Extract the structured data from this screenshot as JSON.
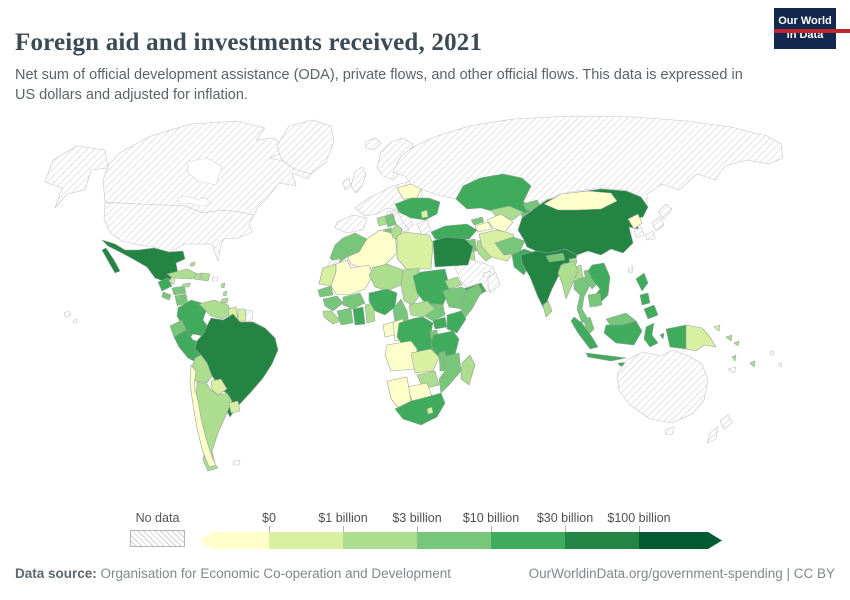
{
  "header": {
    "title": "Foreign aid and investments received, 2021",
    "subtitle": "Net sum of official development assistance (ODA), private flows, and other official flows. This data is expressed in US dollars and adjusted for inflation.",
    "logo": {
      "line1": "Our World",
      "line2": "in Data"
    }
  },
  "legend": {
    "no_data_label": "No data",
    "tick_labels": [
      "$0",
      "$1 billion",
      "$3 billion",
      "$10 billion",
      "$30 billion",
      "$100 billion"
    ]
  },
  "footer": {
    "source_label": "Data source:",
    "source_text": " Organisation for Economic Co-operation and Development",
    "right_text": "OurWorldinData.org/government-spending | CC BY"
  },
  "colors": {
    "logo_bg": "#12294d",
    "logo_accent": "#c0262e",
    "title": "#3b4a54",
    "country_stroke": "#96a29a",
    "no_data_stroke": "#c4c4c4",
    "water_line": "#d8d8d8"
  },
  "chart_data": {
    "type": "choropleth_map",
    "title": "Foreign aid and investments received, 2021",
    "legend_bin_edges": [
      "$0",
      "$1 billion",
      "$3 billion",
      "$10 billion",
      "$30 billion",
      "$100 billion"
    ],
    "palette": [
      "#ffffcc",
      "#d9f0a3",
      "#addd8e",
      "#78c679",
      "#41ab5d",
      "#238443",
      "#005a32"
    ],
    "no_data_bin": -1,
    "countries": {
      "canada": -1,
      "united-states": -1,
      "greenland": -1,
      "europe": -1,
      "russia": -1,
      "saudi-arabia": -1,
      "oman": -1,
      "united-arab-emirates": -1,
      "israel": -1,
      "japan": -1,
      "south-korea": -1,
      "taiwan": -1,
      "australia": -1,
      "new-zealand": -1,
      "new-caledonia": -1,
      "french-guiana": -1,
      "western-sahara": -1,
      "puerto-rico": -1,
      "falkland-islands": -1,
      "polynesia": -1,
      "mexico": 5,
      "guatemala": 4,
      "belize": 1,
      "honduras": 3,
      "el-salvador": 3,
      "nicaragua": 3,
      "costa-rica": 1,
      "panama": 3,
      "cuba": 2,
      "jamaica": 2,
      "haiti": 2,
      "dominican-republic": 2,
      "bahamas": 2,
      "lesser-antilles": 2,
      "colombia": 4,
      "venezuela": 2,
      "guyana": 1,
      "suriname": 1,
      "ecuador": 3,
      "peru": 4,
      "brazil": 5,
      "bolivia": 2,
      "paraguay": 1,
      "argentina": 2,
      "uruguay": 1,
      "chile": 0,
      "belarus": 0,
      "ukraine": 4,
      "moldova": 1,
      "bosnia": 2,
      "serbia": 3,
      "albania-macedonia": 3,
      "turkey": 4,
      "syria": 3,
      "jordan": 2,
      "iraq": 2,
      "iran": 1,
      "yemen": 4,
      "georgia": 3,
      "azerbaijan-armenia": 0,
      "kazakhstan": 4,
      "uzbekistan": 2,
      "turkmenistan": 0,
      "kyrgyzstan": 3,
      "tajikistan": 3,
      "afghanistan": 3,
      "pakistan": 4,
      "india": 5,
      "nepal": 3,
      "bhutan": 2,
      "bangladesh": 2,
      "sri-lanka": 2,
      "china": 5,
      "mongolia": 0,
      "north-korea": 0,
      "myanmar": 2,
      "thailand": 3,
      "laos": 3,
      "vietnam": 4,
      "cambodia": 3,
      "malaysia": 3,
      "indonesia": 4,
      "philippines": 4,
      "papua-indonesia": 4,
      "papua-new-guinea": 1,
      "timor": 2,
      "solomon-islands": 2,
      "vanuatu": 2,
      "fiji": 2,
      "morocco": 3,
      "algeria": 0,
      "tunisia": 2,
      "libya": 1,
      "egypt": 5,
      "mauritania": 1,
      "mali": 0,
      "niger": 2,
      "chad": 2,
      "sudan": 4,
      "eritrea": 2,
      "ethiopia": 3,
      "somalia": 3,
      "south-sudan": 3,
      "senegal": 3,
      "guinea": 3,
      "sierra-leone-liberia": 2,
      "ivory-coast": 3,
      "ghana": 4,
      "togo-benin": 2,
      "burkina-faso": 3,
      "nigeria": 4,
      "cameroon": 3,
      "central-african-republic": 2,
      "gabon": 0,
      "congo": 0,
      "drc": 4,
      "uganda": 4,
      "kenya": 4,
      "rwanda-burundi": 3,
      "tanzania": 4,
      "angola": 0,
      "zambia": 1,
      "malawi": 3,
      "mozambique": 3,
      "zimbabwe": 2,
      "botswana": 0,
      "namibia": 0,
      "south-africa": 4,
      "lesotho": 1,
      "madagascar": 2
    }
  }
}
